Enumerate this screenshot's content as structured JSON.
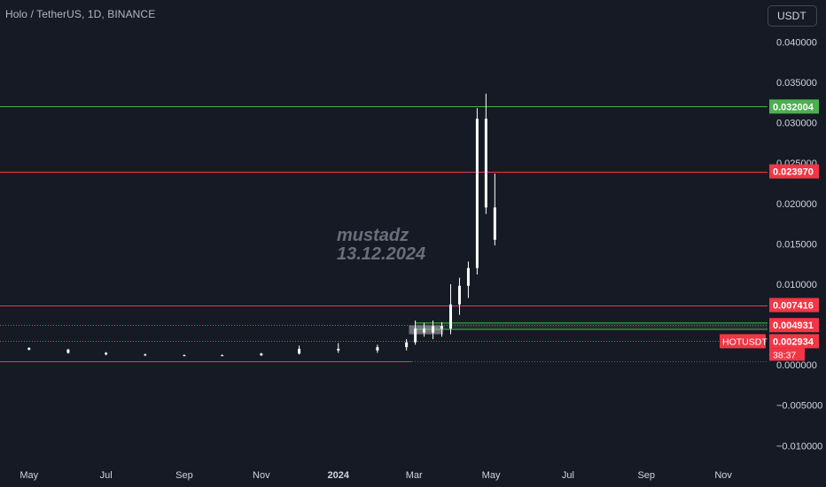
{
  "header": {
    "symbol_title": "Holo / TetherUS, 1D, BINANCE",
    "currency_button": "USDT"
  },
  "watermark": {
    "author": "mustadz",
    "date": "13.12.2024"
  },
  "colors": {
    "background": "#161a25",
    "axis_text": "#d1d4dc",
    "muted_text": "#b2b5be",
    "green_line": "#4caf50",
    "red_line": "#f23645",
    "candle_up": "#ffffff",
    "candle_down": "#ffffff",
    "price_label_red": "#f23645",
    "price_label_green": "#4caf50"
  },
  "chart_data": {
    "type": "candlestick",
    "title": "Holo / TetherUS, 1D, BINANCE",
    "ylim": [
      -0.0115,
      0.0418
    ],
    "y_ticks": [
      "0.040000",
      "0.035000",
      "0.030000",
      "0.025000",
      "0.020000",
      "0.015000",
      "0.010000",
      "0.005000",
      "0.000000",
      "−0.005000",
      "−0.010000"
    ],
    "y_tick_values": [
      0.04,
      0.035,
      0.03,
      0.025,
      0.02,
      0.015,
      0.01,
      0.005,
      0.0,
      -0.005,
      -0.01
    ],
    "x_ticks": [
      {
        "label": "May",
        "date": "2023-05-01"
      },
      {
        "label": "Jul",
        "date": "2023-07-01"
      },
      {
        "label": "Sep",
        "date": "2023-09-01"
      },
      {
        "label": "Nov",
        "date": "2023-11-01"
      },
      {
        "label": "2024",
        "date": "2024-01-01"
      },
      {
        "label": "Mar",
        "date": "2024-03-01"
      },
      {
        "label": "May",
        "date": "2024-05-01"
      },
      {
        "label": "Jul",
        "date": "2024-07-01"
      },
      {
        "label": "Sep",
        "date": "2024-09-01"
      },
      {
        "label": "Nov",
        "date": "2024-11-01"
      }
    ],
    "xlim": [
      "2023-04-08",
      "2024-12-06"
    ],
    "horizontal_lines": [
      {
        "price": 0.032004,
        "label": "0.032004",
        "color": "green",
        "style": "solid"
      },
      {
        "price": 0.02397,
        "label": "0.023970",
        "color": "red",
        "style": "solid"
      },
      {
        "price": 0.007416,
        "label": "0.007416",
        "color": "red",
        "style": "solid"
      },
      {
        "price": 0.004931,
        "label": "0.004931",
        "color": "red",
        "style": "dotted"
      },
      {
        "price": 0.002934,
        "label": "0.002934",
        "color": "red",
        "style": "dotted"
      }
    ],
    "zones": [
      {
        "from": "2024-03-02",
        "to": "2024-12-06",
        "low": 0.0044,
        "high": 0.0052,
        "color": "green"
      },
      {
        "from": "2024-02-26",
        "to": "2024-03-24",
        "low": 0.0038,
        "high": 0.0049,
        "color": "gray"
      }
    ],
    "current_price": {
      "symbol": "HOTUSDT",
      "value": "0.002934",
      "countdown": "38:37"
    },
    "candles": [
      {
        "date": "2023-05-01",
        "open": 0.0021,
        "high": 0.0022,
        "low": 0.0018,
        "close": 0.0019
      },
      {
        "date": "2023-06-01",
        "open": 0.0019,
        "high": 0.002,
        "low": 0.0014,
        "close": 0.0015
      },
      {
        "date": "2023-07-01",
        "open": 0.0015,
        "high": 0.0016,
        "low": 0.0012,
        "close": 0.0013
      },
      {
        "date": "2023-08-01",
        "open": 0.0013,
        "high": 0.0014,
        "low": 0.0011,
        "close": 0.0012
      },
      {
        "date": "2023-09-01",
        "open": 0.0012,
        "high": 0.0013,
        "low": 0.0011,
        "close": 0.0012
      },
      {
        "date": "2023-10-01",
        "open": 0.0012,
        "high": 0.0013,
        "low": 0.0011,
        "close": 0.0012
      },
      {
        "date": "2023-11-01",
        "open": 0.0012,
        "high": 0.0015,
        "low": 0.0011,
        "close": 0.0014
      },
      {
        "date": "2023-12-01",
        "open": 0.0014,
        "high": 0.0024,
        "low": 0.0013,
        "close": 0.002
      },
      {
        "date": "2024-01-01",
        "open": 0.002,
        "high": 0.0027,
        "low": 0.0015,
        "close": 0.0018
      },
      {
        "date": "2024-02-01",
        "open": 0.0018,
        "high": 0.0025,
        "low": 0.0015,
        "close": 0.0022
      },
      {
        "date": "2024-02-24",
        "open": 0.0022,
        "high": 0.0032,
        "low": 0.0018,
        "close": 0.0028
      },
      {
        "date": "2024-03-02",
        "open": 0.0028,
        "high": 0.0055,
        "low": 0.0025,
        "close": 0.0045
      },
      {
        "date": "2024-03-09",
        "open": 0.0045,
        "high": 0.0052,
        "low": 0.0035,
        "close": 0.004
      },
      {
        "date": "2024-03-16",
        "open": 0.004,
        "high": 0.0055,
        "low": 0.0032,
        "close": 0.0048
      },
      {
        "date": "2024-03-23",
        "open": 0.0048,
        "high": 0.0053,
        "low": 0.0035,
        "close": 0.0045
      },
      {
        "date": "2024-03-30",
        "open": 0.0045,
        "high": 0.01,
        "low": 0.0038,
        "close": 0.0075
      },
      {
        "date": "2024-04-06",
        "open": 0.0075,
        "high": 0.0108,
        "low": 0.0062,
        "close": 0.0098
      },
      {
        "date": "2024-04-13",
        "open": 0.0098,
        "high": 0.0128,
        "low": 0.0083,
        "close": 0.012
      },
      {
        "date": "2024-04-20",
        "open": 0.012,
        "high": 0.0318,
        "low": 0.0112,
        "close": 0.0305
      },
      {
        "date": "2024-04-27",
        "open": 0.0305,
        "high": 0.0336,
        "low": 0.0187,
        "close": 0.0195
      },
      {
        "date": "2024-05-04",
        "open": 0.0195,
        "high": 0.0237,
        "low": 0.0148,
        "close": 0.0155
      }
    ]
  }
}
